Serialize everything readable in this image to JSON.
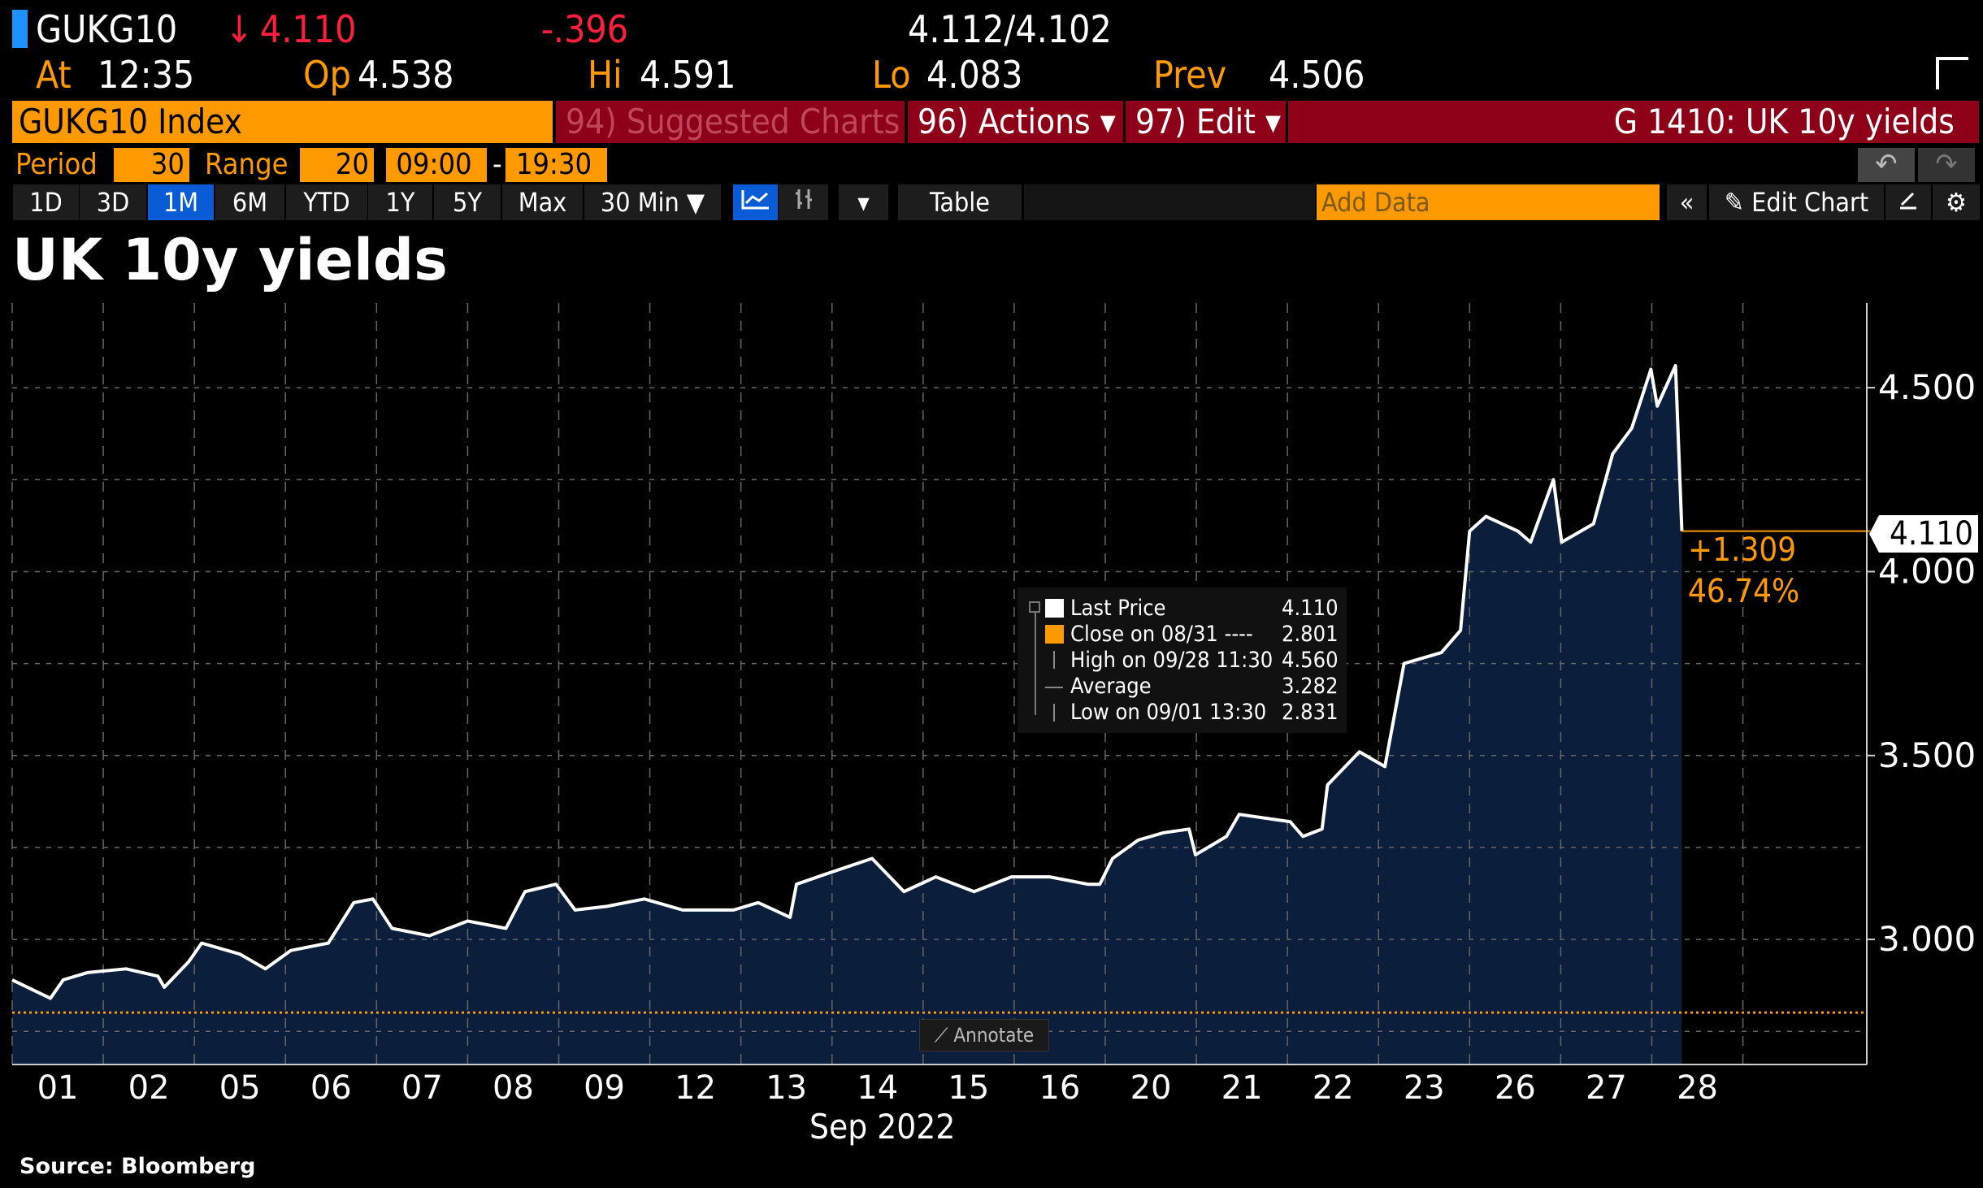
{
  "header": {
    "ticker": "GUKG10",
    "last_arrow": "↓",
    "last": "4.110",
    "change": "-.396",
    "bid_ask": "4.112/4.102",
    "at_label": "At",
    "at": "12:35",
    "op_label": "Op",
    "op": "4.538",
    "hi_label": "Hi",
    "hi": "4.591",
    "lo_label": "Lo",
    "lo": "4.083",
    "prev_label": "Prev",
    "prev": "4.506"
  },
  "toolbar": {
    "security": "GUKG10 Index",
    "suggested": "94) Suggested Charts",
    "actions": "96) Actions ▾",
    "edit": "97) Edit ▾",
    "chart_title": "G 1410: UK 10y yields",
    "period_label": "Period",
    "period": "30",
    "range_label": "Range",
    "range": "20",
    "start": "09:00",
    "dash": "-",
    "end": "19:30",
    "undo": "↶",
    "redo": "↷",
    "ranges": [
      "1D",
      "3D",
      "1M",
      "6M",
      "YTD",
      "1Y",
      "5Y",
      "Max"
    ],
    "interval": "30 Min ▼",
    "dropdown": "▾",
    "table": "Table",
    "add_data_placeholder": "Add Data",
    "collapse": "«",
    "edit_chart": "✎ Edit Chart",
    "gear": "⚙"
  },
  "accent": {
    "orange": "#ff9900",
    "blue": "#0a5bd6",
    "red_bar": "#8e0018"
  },
  "legend": {
    "rows": [
      {
        "label": "Last Price",
        "value": "4.110"
      },
      {
        "label": "Close on 08/31 ----",
        "value": "2.801"
      },
      {
        "label": "High on 09/28 11:30",
        "value": "4.560"
      },
      {
        "label": "Average",
        "value": "3.282"
      },
      {
        "label": "Low on 09/01 13:30",
        "value": "2.831"
      }
    ]
  },
  "annotate": "⟋ Annotate",
  "last_tag": "4.110",
  "change_abs": "+1.309",
  "change_pct": "46.74%",
  "source": "Source: Bloomberg",
  "chart_data": {
    "type": "area",
    "title": "UK 10y yields",
    "xlabel": "Sep 2022",
    "ylabel": "",
    "xlim": [
      0,
      20.36
    ],
    "ylim": [
      2.66,
      4.73
    ],
    "x_unit": "trading days since 09/01 open",
    "categories": [
      "01",
      "02",
      "05",
      "06",
      "07",
      "08",
      "09",
      "12",
      "13",
      "14",
      "15",
      "16",
      "20",
      "21",
      "22",
      "23",
      "26",
      "27",
      "28"
    ],
    "y_ticks": [
      3.0,
      3.5,
      4.0,
      4.5
    ],
    "y_tick_labels": [
      "3.000",
      "3.500",
      "4.000",
      "4.500"
    ],
    "y_grid": [
      2.75,
      3.0,
      3.25,
      3.5,
      3.75,
      4.0,
      4.25,
      4.5
    ],
    "reference_line": {
      "name": "Close on 08/31",
      "value": 2.801
    },
    "series": [
      {
        "name": "Last Price",
        "points": [
          [
            0,
            2.89
          ],
          [
            0.42,
            2.84
          ],
          [
            0.56,
            2.89
          ],
          [
            0.83,
            2.91
          ],
          [
            1.25,
            2.92
          ],
          [
            1.6,
            2.9
          ],
          [
            1.67,
            2.87
          ],
          [
            1.94,
            2.94
          ],
          [
            2.08,
            2.99
          ],
          [
            2.5,
            2.96
          ],
          [
            2.78,
            2.92
          ],
          [
            3.06,
            2.97
          ],
          [
            3.47,
            2.99
          ],
          [
            3.75,
            3.1
          ],
          [
            3.96,
            3.11
          ],
          [
            4.17,
            3.03
          ],
          [
            4.58,
            3.01
          ],
          [
            5.0,
            3.05
          ],
          [
            5.42,
            3.03
          ],
          [
            5.63,
            3.13
          ],
          [
            5.97,
            3.15
          ],
          [
            6.18,
            3.08
          ],
          [
            6.53,
            3.09
          ],
          [
            6.94,
            3.11
          ],
          [
            7.36,
            3.08
          ],
          [
            7.92,
            3.08
          ],
          [
            8.19,
            3.1
          ],
          [
            8.54,
            3.06
          ],
          [
            8.61,
            3.15
          ],
          [
            8.96,
            3.18
          ],
          [
            9.44,
            3.22
          ],
          [
            9.79,
            3.13
          ],
          [
            10.14,
            3.17
          ],
          [
            10.56,
            3.13
          ],
          [
            10.97,
            3.17
          ],
          [
            11.39,
            3.17
          ],
          [
            11.81,
            3.15
          ],
          [
            11.94,
            3.15
          ],
          [
            12.08,
            3.22
          ],
          [
            12.36,
            3.27
          ],
          [
            12.64,
            3.29
          ],
          [
            12.92,
            3.3
          ],
          [
            12.99,
            3.23
          ],
          [
            13.33,
            3.28
          ],
          [
            13.47,
            3.34
          ],
          [
            14.03,
            3.32
          ],
          [
            14.17,
            3.28
          ],
          [
            14.38,
            3.3
          ],
          [
            14.44,
            3.42
          ],
          [
            14.79,
            3.51
          ],
          [
            15.07,
            3.47
          ],
          [
            15.28,
            3.75
          ],
          [
            15.69,
            3.78
          ],
          [
            15.9,
            3.84
          ],
          [
            16.0,
            4.11
          ],
          [
            16.18,
            4.15
          ],
          [
            16.53,
            4.11
          ],
          [
            16.67,
            4.08
          ],
          [
            16.92,
            4.25
          ],
          [
            17.01,
            4.08
          ],
          [
            17.36,
            4.13
          ],
          [
            17.57,
            4.32
          ],
          [
            17.78,
            4.39
          ],
          [
            17.99,
            4.55
          ],
          [
            18.06,
            4.45
          ],
          [
            18.26,
            4.56
          ],
          [
            18.33,
            4.11
          ]
        ]
      }
    ]
  }
}
